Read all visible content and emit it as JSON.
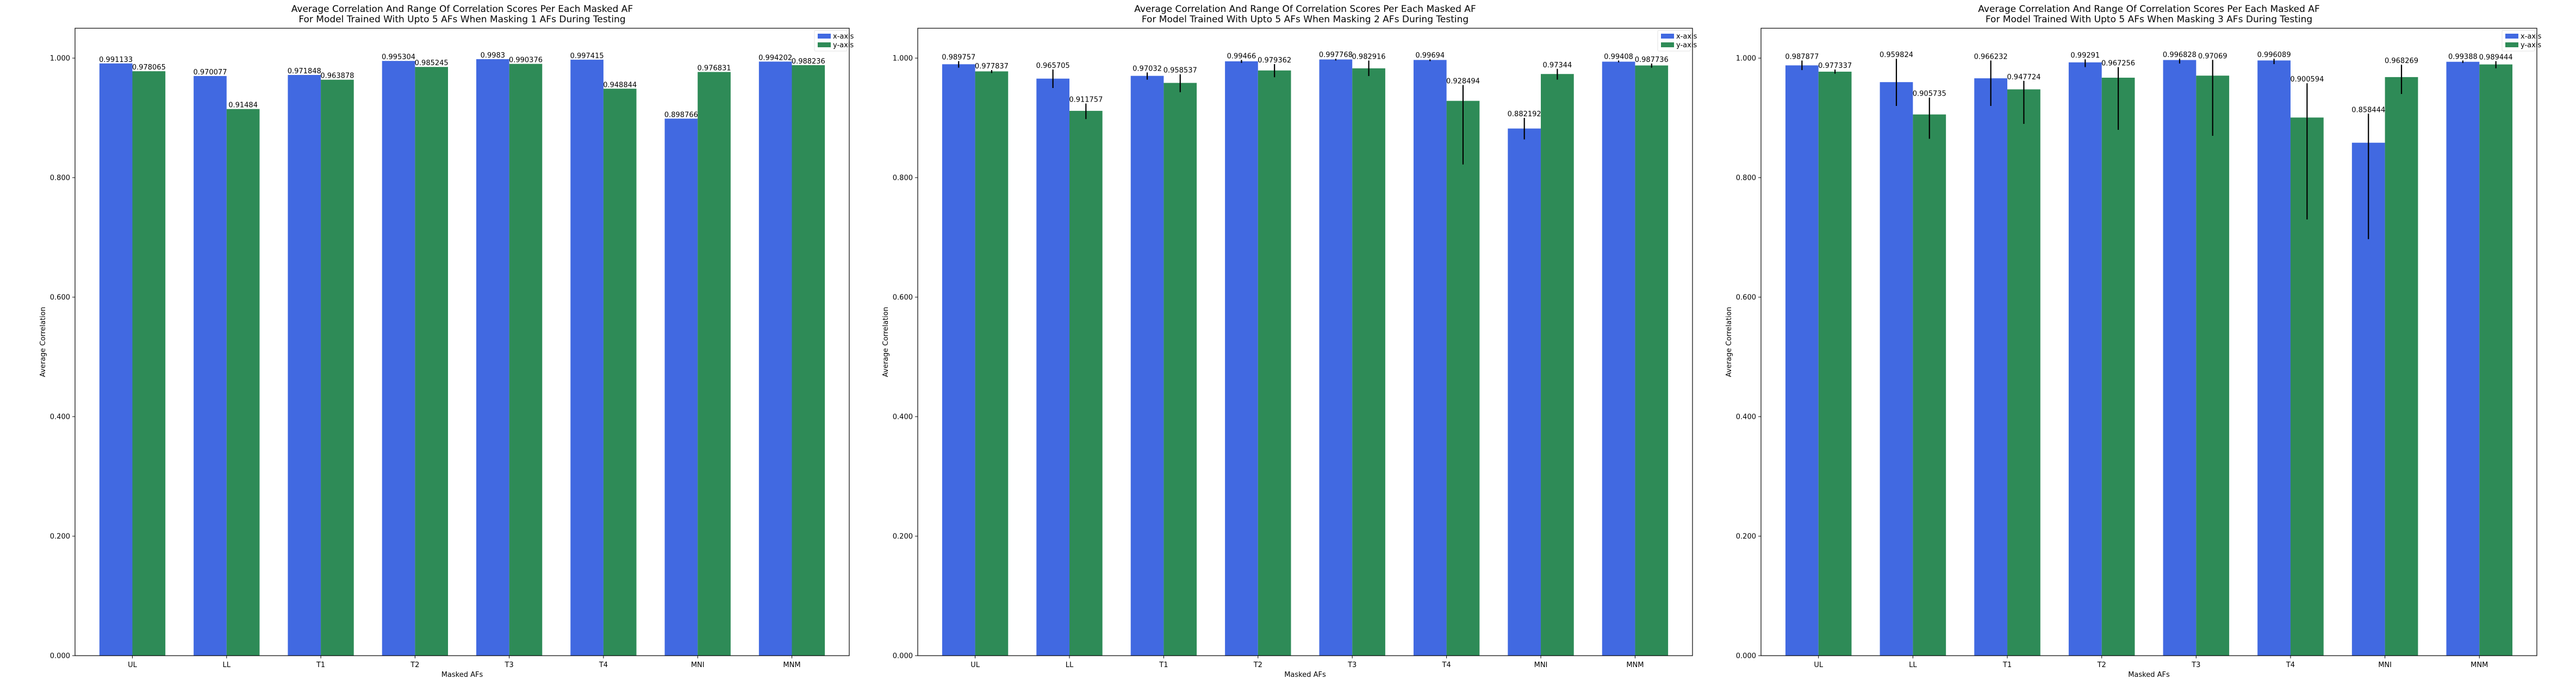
{
  "colors": {
    "x_axis": "#4169e1",
    "y_axis": "#2e8b57",
    "error_bar": "#000000",
    "axes": "#000000"
  },
  "chart_data": [
    {
      "type": "bar",
      "title": "Average Correlation And Range Of Correlation Scores Per Each Masked AF\nFor Model Trained With Upto 5 AFs When Masking 1 AFs During Testing",
      "title_lines": [
        "Average Correlation And Range Of Correlation Scores Per Each Masked AF",
        "For Model Trained With Upto 5 AFs When Masking 1 AFs During Testing"
      ],
      "xlabel": "Masked AFs",
      "ylabel": "Average Correlation",
      "ylim": [
        0,
        1.05
      ],
      "yticks": [
        "0.000",
        "0.200",
        "0.400",
        "0.600",
        "0.800",
        "1.000"
      ],
      "yticks_values": [
        0,
        0.2,
        0.4,
        0.6,
        0.8,
        1.0
      ],
      "legend_position": "top-right",
      "grid": false,
      "categories": [
        "UL",
        "LL",
        "T1",
        "T2",
        "T3",
        "T4",
        "MNI",
        "MNM"
      ],
      "series": [
        {
          "name": "x-axis",
          "values": [
            0.991133,
            0.970077,
            0.971848,
            0.995304,
            0.9983,
            0.997415,
            0.898766,
            0.994202
          ],
          "labels": [
            "0.991133",
            "0.970077",
            "0.971848",
            "0.995304",
            "0.9983",
            "0.997415",
            "0.898766",
            "0.994202"
          ],
          "err_low": [
            0.991133,
            0.970077,
            0.971848,
            0.995304,
            0.9983,
            0.997415,
            0.898766,
            0.994202
          ],
          "err_high": [
            0.991133,
            0.970077,
            0.971848,
            0.995304,
            0.9983,
            0.997415,
            0.898766,
            0.994202
          ]
        },
        {
          "name": "y-axis",
          "values": [
            0.978065,
            0.91484,
            0.963878,
            0.985245,
            0.990376,
            0.948844,
            0.976831,
            0.988236
          ],
          "labels": [
            "0.978065",
            "0.91484",
            "0.963878",
            "0.985245",
            "0.990376",
            "0.948844",
            "0.976831",
            "0.988236"
          ],
          "err_low": [
            0.978065,
            0.91484,
            0.963878,
            0.985245,
            0.990376,
            0.948844,
            0.976831,
            0.988236
          ],
          "err_high": [
            0.978065,
            0.91484,
            0.963878,
            0.985245,
            0.990376,
            0.948844,
            0.976831,
            0.988236
          ]
        }
      ]
    },
    {
      "type": "bar",
      "title": "Average Correlation And Range Of Correlation Scores Per Each Masked AF\nFor Model Trained With Upto 5 AFs When Masking 2 AFs During Testing",
      "title_lines": [
        "Average Correlation And Range Of Correlation Scores Per Each Masked AF",
        "For Model Trained With Upto 5 AFs When Masking 2 AFs During Testing"
      ],
      "xlabel": "Masked AFs",
      "ylabel": "Average Correlation",
      "ylim": [
        0,
        1.05
      ],
      "yticks": [
        "0.000",
        "0.200",
        "0.400",
        "0.600",
        "0.800",
        "1.000"
      ],
      "yticks_values": [
        0,
        0.2,
        0.4,
        0.6,
        0.8,
        1.0
      ],
      "legend_position": "top-right",
      "grid": false,
      "categories": [
        "UL",
        "LL",
        "T1",
        "T2",
        "T3",
        "T4",
        "MNI",
        "MNM"
      ],
      "series": [
        {
          "name": "x-axis",
          "values": [
            0.989757,
            0.965705,
            0.97032,
            0.99466,
            0.997768,
            0.99694,
            0.882192,
            0.99408
          ],
          "labels": [
            "0.989757",
            "0.965705",
            "0.97032",
            "0.99466",
            "0.997768",
            "0.99694",
            "0.882192",
            "0.99408"
          ],
          "err_low": [
            0.984,
            0.95,
            0.964,
            0.992,
            0.996,
            0.995,
            0.864,
            0.993
          ],
          "err_high": [
            0.995,
            0.981,
            0.976,
            0.997,
            0.999,
            0.998,
            0.9,
            0.996
          ]
        },
        {
          "name": "y-axis",
          "values": [
            0.977837,
            0.911757,
            0.958537,
            0.979362,
            0.982916,
            0.928494,
            0.97344,
            0.987736
          ],
          "labels": [
            "0.977837",
            "0.911757",
            "0.958537",
            "0.979362",
            "0.982916",
            "0.928494",
            "0.97344",
            "0.987736"
          ],
          "err_low": [
            0.975,
            0.898,
            0.943,
            0.968,
            0.97,
            0.822,
            0.964,
            0.984
          ],
          "err_high": [
            0.98,
            0.924,
            0.973,
            0.99,
            0.996,
            0.955,
            0.982,
            0.991
          ]
        }
      ]
    },
    {
      "type": "bar",
      "title": "Average Correlation And Range Of Correlation Scores Per Each Masked AF\nFor Model Trained With Upto 5 AFs When Masking 3 AFs During Testing",
      "title_lines": [
        "Average Correlation And Range Of Correlation Scores Per Each Masked AF",
        "For Model Trained With Upto 5 AFs When Masking 3 AFs During Testing"
      ],
      "xlabel": "Masked AFs",
      "ylabel": "Average Correlation",
      "ylim": [
        0,
        1.05
      ],
      "yticks": [
        "0.000",
        "0.200",
        "0.400",
        "0.600",
        "0.800",
        "1.000"
      ],
      "yticks_values": [
        0,
        0.2,
        0.4,
        0.6,
        0.8,
        1.0
      ],
      "legend_position": "top-right",
      "grid": false,
      "categories": [
        "UL",
        "LL",
        "T1",
        "T2",
        "T3",
        "T4",
        "MNI",
        "MNM"
      ],
      "series": [
        {
          "name": "x-axis",
          "values": [
            0.987877,
            0.959824,
            0.966232,
            0.99291,
            0.996828,
            0.996089,
            0.858444,
            0.99388
          ],
          "labels": [
            "0.987877",
            "0.959824",
            "0.966232",
            "0.99291",
            "0.996828",
            "0.996089",
            "0.858444",
            "0.99388"
          ],
          "err_low": [
            0.98,
            0.92,
            0.92,
            0.985,
            0.991,
            0.99,
            0.697,
            0.992
          ],
          "err_high": [
            0.996,
            0.999,
            0.996,
            0.998,
            0.999,
            0.999,
            0.907,
            0.996
          ]
        },
        {
          "name": "y-axis",
          "values": [
            0.977337,
            0.905735,
            0.947724,
            0.967256,
            0.97069,
            0.900594,
            0.968269,
            0.989444
          ],
          "labels": [
            "0.977337",
            "0.905735",
            "0.947724",
            "0.967256",
            "0.97069",
            "0.900594",
            "0.968269",
            "0.989444"
          ],
          "err_low": [
            0.974,
            0.865,
            0.89,
            0.88,
            0.87,
            0.73,
            0.94,
            0.983
          ],
          "err_high": [
            0.981,
            0.934,
            0.962,
            0.985,
            0.997,
            0.958,
            0.989,
            0.995
          ]
        }
      ]
    }
  ]
}
